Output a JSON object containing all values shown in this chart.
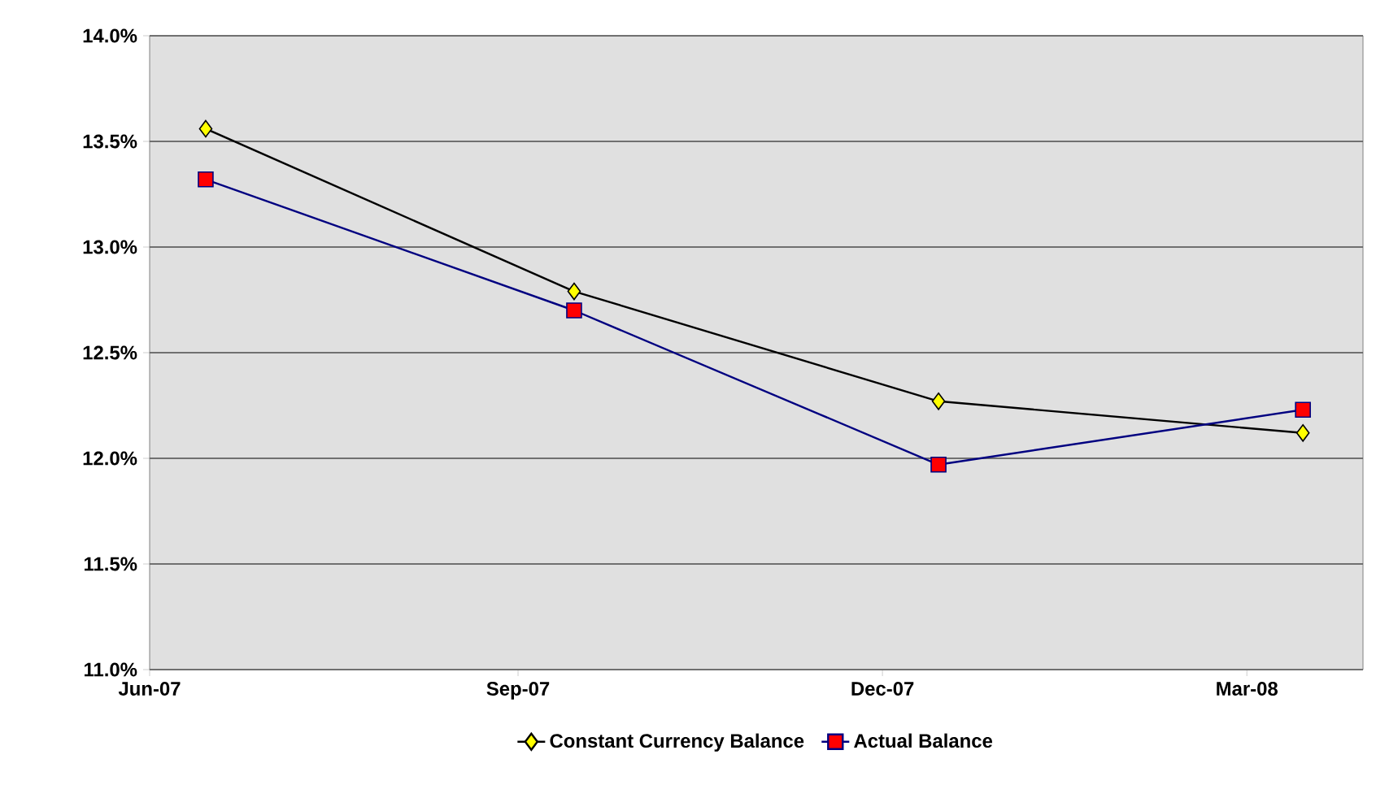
{
  "chart_data": {
    "type": "line",
    "x": [
      "2007-06-15",
      "2007-09-15",
      "2007-12-15",
      "2008-03-15"
    ],
    "series": [
      {
        "name": "Constant Currency Balance",
        "color": "#000000",
        "marker": "diamond",
        "colors": [
          "#ffff00",
          "#ffff00",
          "#ffff00",
          "#ffff00"
        ],
        "values": [
          13.56,
          12.79,
          12.27,
          12.12
        ]
      },
      {
        "name": "Actual Balance",
        "color": "#000080",
        "marker": "square",
        "colors": [
          "#ff0000",
          "#ff0000",
          "#ff0000",
          "#ff0000"
        ],
        "values": [
          13.32,
          12.7,
          11.97,
          12.23
        ]
      }
    ],
    "xlim": [
      "2007-06-01",
      "2008-03-30"
    ],
    "xticks": [
      {
        "value": "2007-06-01",
        "label": "Jun-07"
      },
      {
        "value": "2007-09-01",
        "label": "Sep-07"
      },
      {
        "value": "2007-12-01",
        "label": "Dec-07"
      },
      {
        "value": "2008-03-01",
        "label": "Mar-08"
      }
    ],
    "ylim": [
      11.0,
      14.0
    ],
    "yticks": [
      {
        "value": 11.0,
        "label": "11.0%"
      },
      {
        "value": 11.5,
        "label": "11.5%"
      },
      {
        "value": 12.0,
        "label": "12.0%"
      },
      {
        "value": 12.5,
        "label": "12.5%"
      },
      {
        "value": 13.0,
        "label": "13.0%"
      },
      {
        "value": 13.5,
        "label": "13.5%"
      },
      {
        "value": 14.0,
        "label": "14.0%"
      }
    ],
    "grid": "y",
    "legend": "bottom",
    "line_style": "solid"
  }
}
